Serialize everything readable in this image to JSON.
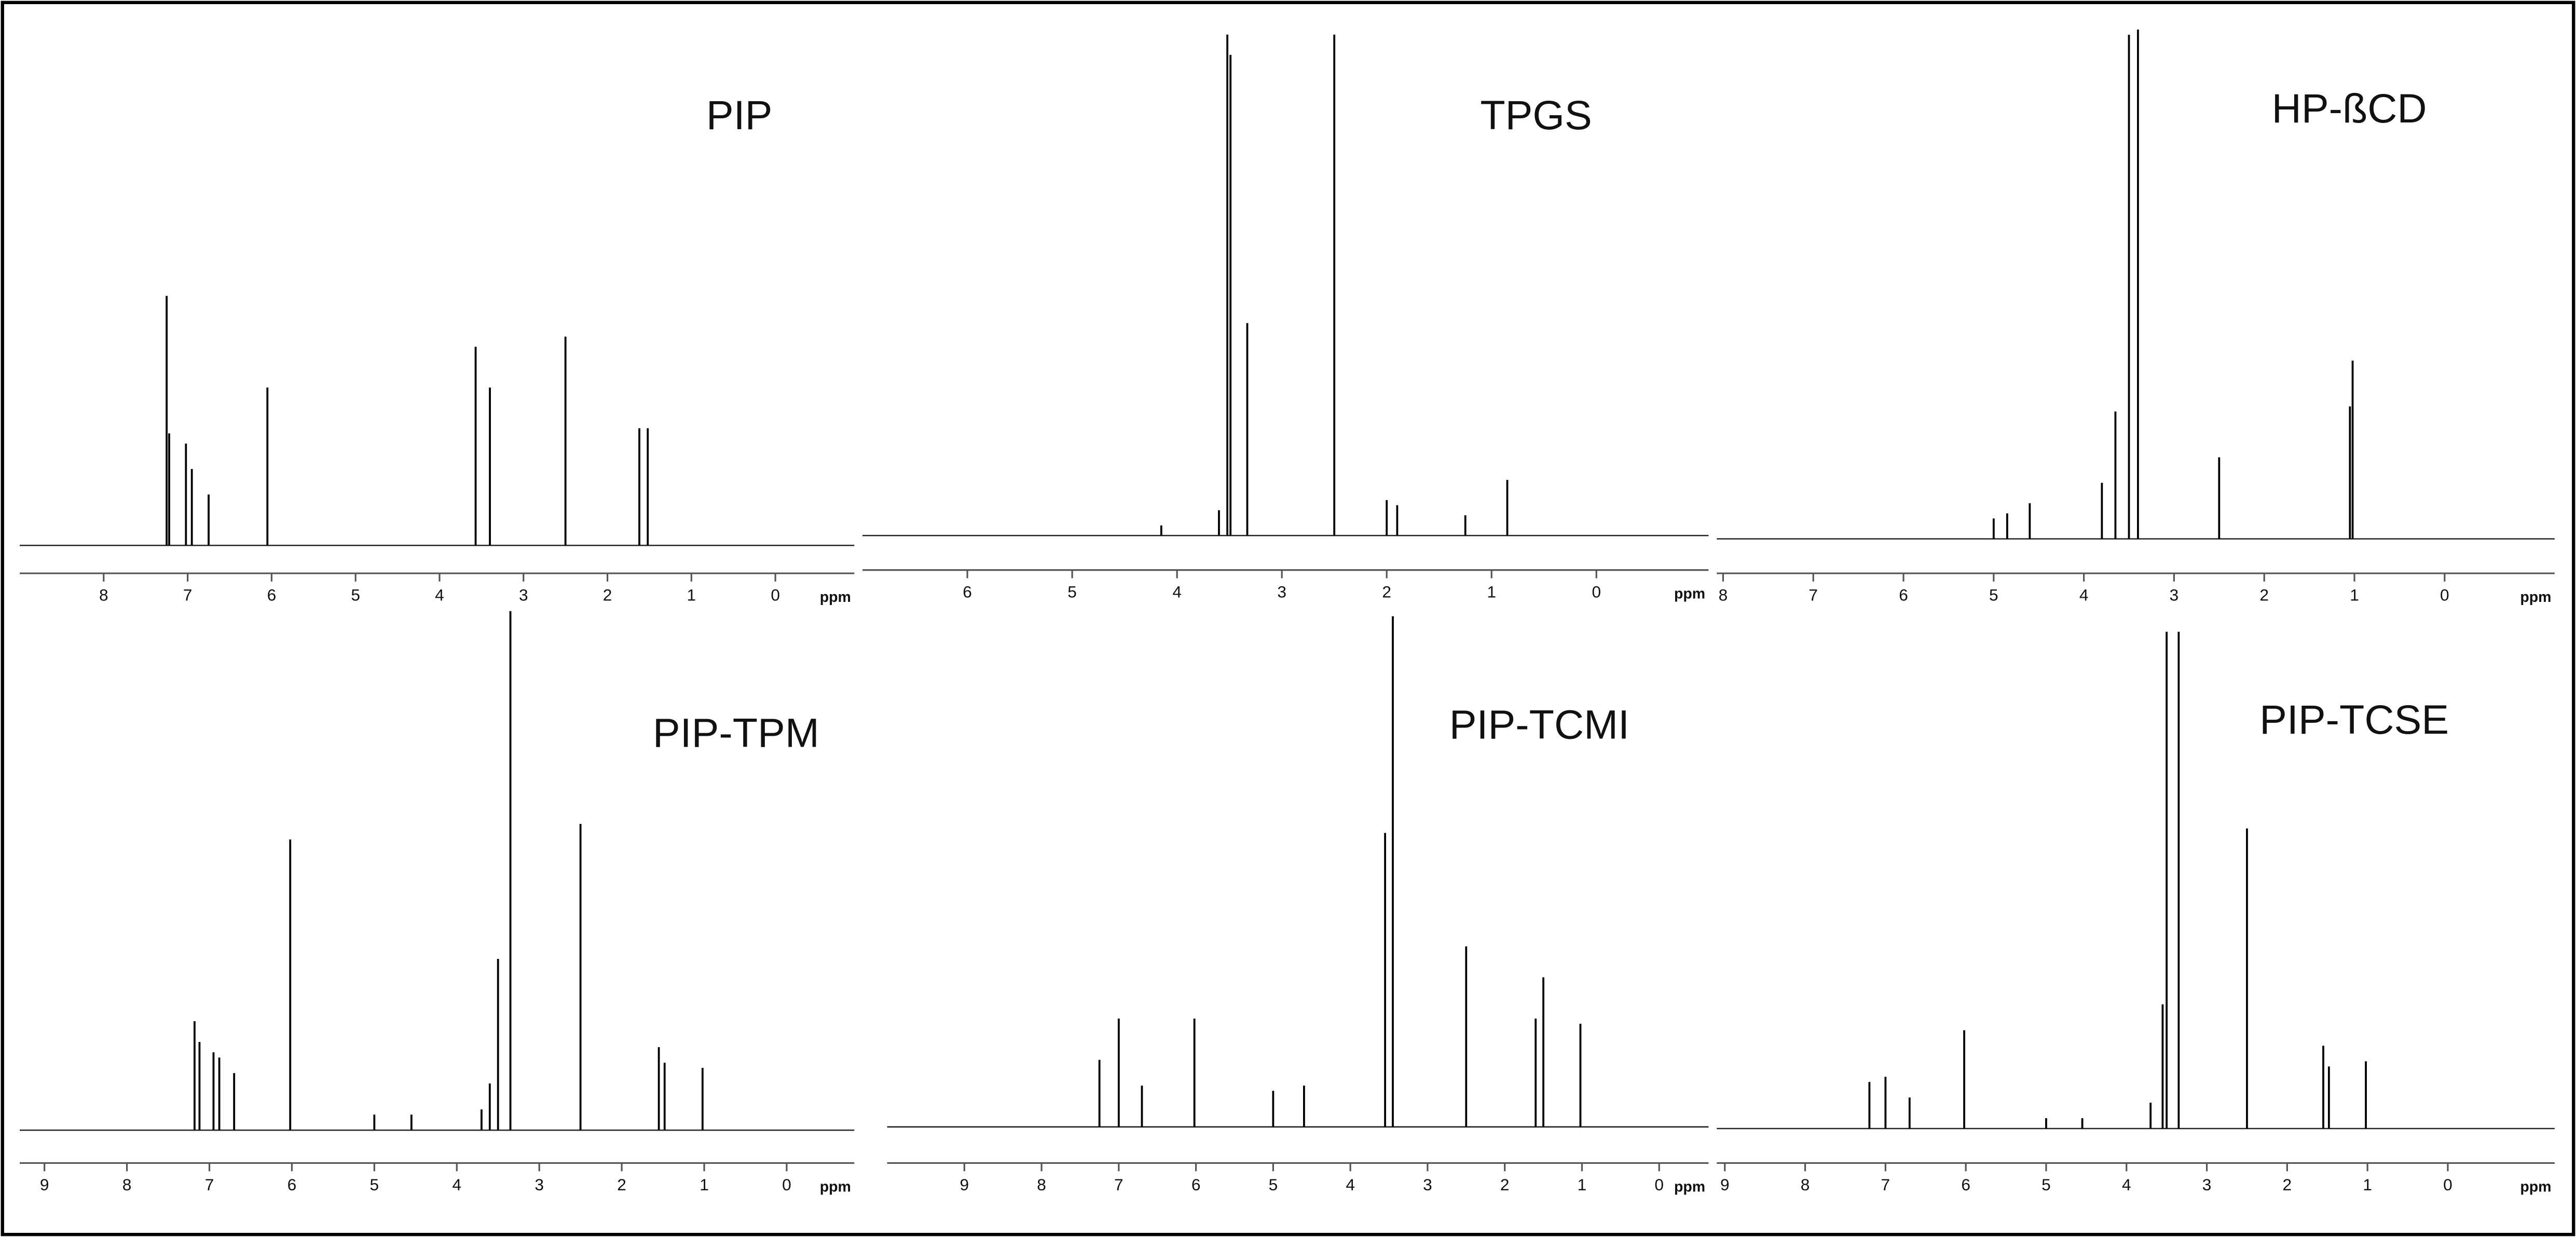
{
  "chart_data": [
    {
      "type": "stem",
      "title": "PIP",
      "x_label": "ppm",
      "color": "#000000",
      "x": [
        7.25,
        7.22,
        7.02,
        6.95,
        6.75,
        6.05,
        3.57,
        3.4,
        2.5,
        1.62,
        1.52
      ],
      "values": [
        49,
        22,
        20,
        15,
        10,
        31,
        39,
        31,
        41,
        23,
        23
      ],
      "xlim": [
        9.0,
        -0.94
      ],
      "xticks": [
        8,
        7,
        6,
        5,
        4,
        3,
        2,
        1,
        0
      ],
      "ylim": [
        0,
        100
      ]
    },
    {
      "type": "stem",
      "title": "TPGS",
      "x_label": "ppm",
      "color": "#000000",
      "x": [
        4.15,
        3.6,
        3.52,
        3.49,
        3.33,
        2.5,
        2.0,
        1.9,
        1.25,
        0.85
      ],
      "values": [
        2,
        5,
        99,
        95,
        42,
        99,
        7,
        6,
        4,
        11
      ],
      "xlim": [
        7.0,
        -1.07
      ],
      "xticks": [
        6,
        5,
        4,
        3,
        2,
        1,
        0
      ],
      "ylim": [
        0,
        100
      ]
    },
    {
      "type": "stem",
      "title": "HP-ßCD",
      "x_label": "ppm",
      "color": "#000000",
      "x": [
        5.0,
        4.85,
        4.6,
        3.8,
        3.65,
        3.5,
        3.4,
        2.5,
        1.05,
        1.02
      ],
      "values": [
        4,
        5,
        7,
        11,
        25,
        99,
        100,
        16,
        26,
        35
      ],
      "xlim": [
        8.07,
        -1.22
      ],
      "xticks": [
        8,
        7,
        6,
        5,
        4,
        3,
        2,
        1,
        0
      ],
      "ylim": [
        0,
        100
      ]
    },
    {
      "type": "stem",
      "title": "PIP-TPM",
      "x_label": "ppm",
      "color": "#000000",
      "x": [
        7.18,
        7.12,
        6.95,
        6.88,
        6.7,
        6.02,
        5.0,
        4.55,
        3.7,
        3.6,
        3.5,
        3.35,
        2.5,
        1.55,
        1.48,
        1.02
      ],
      "values": [
        21,
        17,
        15,
        14,
        11,
        56,
        3,
        3,
        4,
        9,
        33,
        100,
        59,
        16,
        13,
        12
      ],
      "xlim": [
        9.3,
        -0.82
      ],
      "xticks": [
        9,
        8,
        7,
        6,
        5,
        4,
        3,
        2,
        1,
        0
      ],
      "ylim": [
        0,
        100
      ]
    },
    {
      "type": "stem",
      "title": "PIP-TCMI",
      "x_label": "ppm",
      "color": "#000000",
      "x": [
        7.25,
        7.0,
        6.7,
        6.02,
        5.0,
        4.6,
        3.55,
        3.45,
        2.5,
        1.6,
        1.5,
        1.02
      ],
      "values": [
        13,
        21,
        8,
        21,
        7,
        8,
        57,
        99,
        35,
        21,
        29,
        20
      ],
      "xlim": [
        10.0,
        -0.64
      ],
      "xticks": [
        9,
        8,
        7,
        6,
        5,
        4,
        3,
        2,
        1,
        0
      ],
      "ylim": [
        0,
        100
      ]
    },
    {
      "type": "stem",
      "title": "PIP-TCSE",
      "x_label": "ppm",
      "color": "#000000",
      "x": [
        7.2,
        7.0,
        6.7,
        6.02,
        5.0,
        4.55,
        3.7,
        3.55,
        3.5,
        3.35,
        2.5,
        1.55,
        1.48,
        1.02
      ],
      "values": [
        9,
        10,
        6,
        19,
        2,
        2,
        5,
        24,
        96,
        96,
        58,
        16,
        12,
        13
      ],
      "xlim": [
        9.1,
        -1.33
      ],
      "xticks": [
        9,
        8,
        7,
        6,
        5,
        4,
        3,
        2,
        1,
        0
      ],
      "ylim": [
        0,
        100
      ]
    }
  ]
}
